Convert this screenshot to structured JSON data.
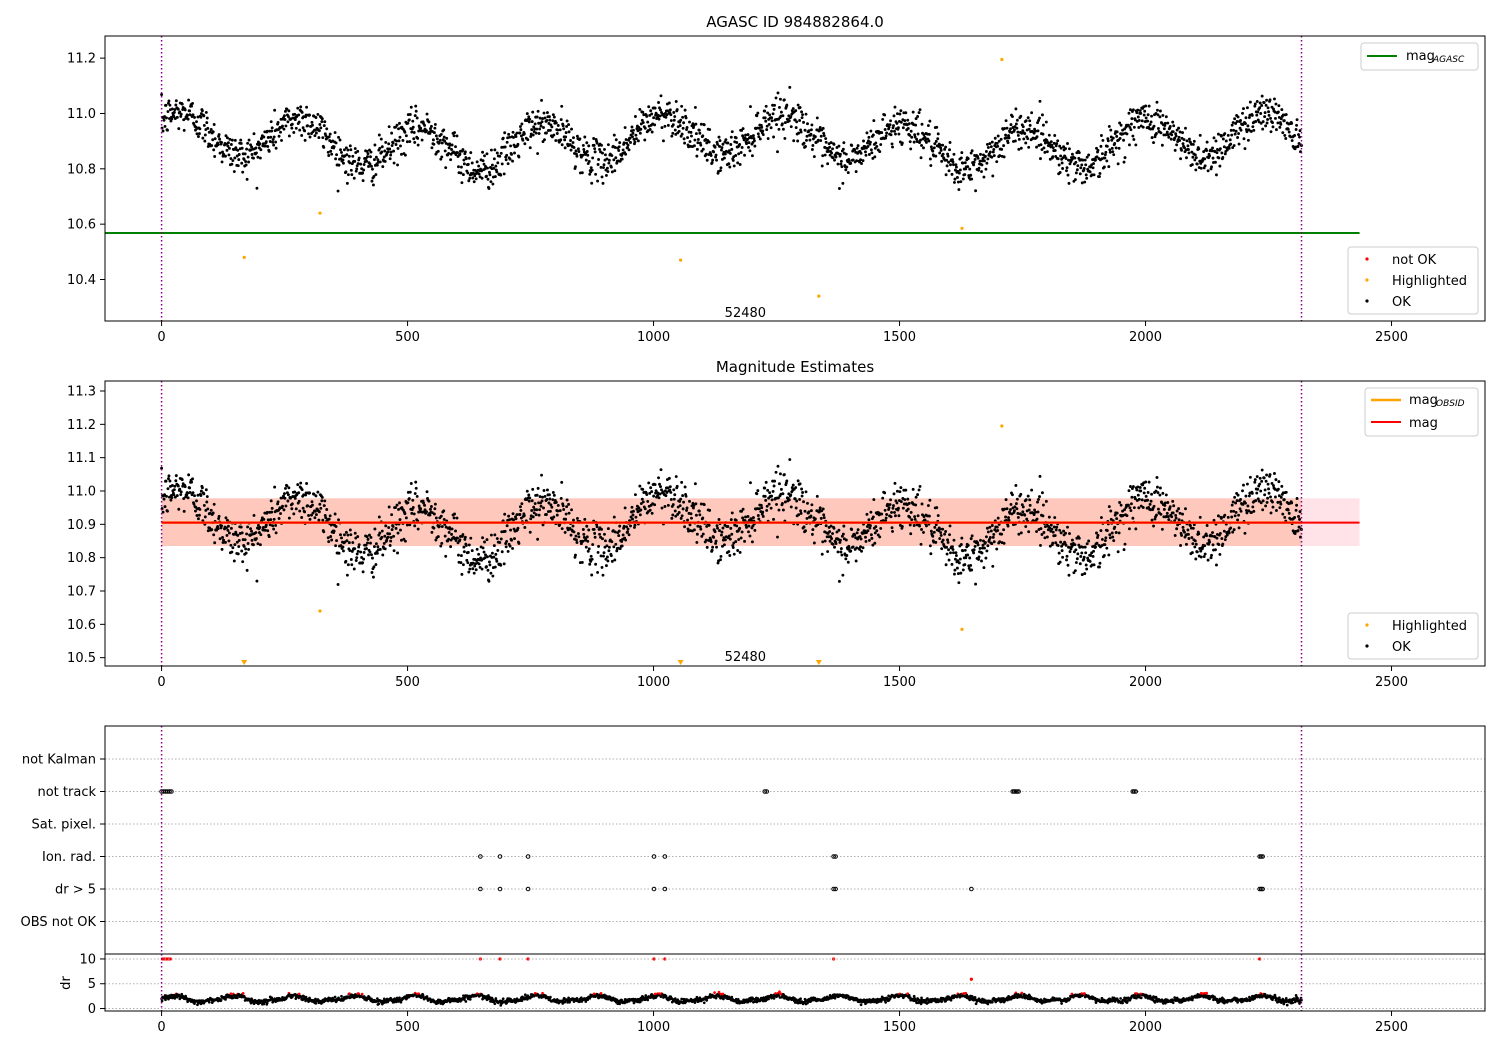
{
  "colors": {
    "ok": "#000000",
    "not_ok": "#ff0000",
    "highlighted": "#ffa500",
    "mag_agasc": "#008000",
    "mag_obsid": "#ffa500",
    "mag": "#ff0000",
    "obsid_boundary": "#800080",
    "band_outer": "#ffc0cb",
    "band_inner": "#ffa07a",
    "flag_grid": "#b0b0b0"
  },
  "chart_data": [
    {
      "type": "scatter",
      "title": "AGASC ID 984882864.0",
      "xlim": [
        -115,
        2690
      ],
      "ylim": [
        10.25,
        11.28
      ],
      "x_ticks": [
        0,
        500,
        1000,
        1500,
        2000,
        2500
      ],
      "y_ticks": [
        10.4,
        10.6,
        10.8,
        11.0,
        11.2
      ],
      "obsid_label": {
        "text": "52480",
        "x": 1150,
        "y": 10.265
      },
      "obsid_boundaries": [
        0,
        2317
      ],
      "ok_points": {
        "count": 2320,
        "x_range": [
          0,
          2317
        ],
        "y_range": [
          10.7,
          11.1
        ]
      },
      "highlighted_points": [
        [
          168,
          10.48
        ],
        [
          322,
          10.64
        ],
        [
          1055,
          10.47
        ],
        [
          1336,
          10.34
        ],
        [
          1627,
          10.585
        ],
        [
          1708,
          11.195
        ]
      ],
      "mag_agasc": {
        "value": 10.568,
        "x_range": [
          0,
          2435
        ]
      },
      "legend_upper": {
        "position": "upper right",
        "entries": [
          {
            "label": "mag",
            "sub": "AGASC"
          }
        ]
      },
      "legend_lower": {
        "position": "lower right",
        "entries": [
          "not OK",
          "Highlighted",
          "OK"
        ]
      }
    },
    {
      "type": "scatter",
      "title": "Magnitude Estimates",
      "xlim": [
        -115,
        2690
      ],
      "ylim": [
        10.475,
        11.33
      ],
      "x_ticks": [
        0,
        500,
        1000,
        1500,
        2000,
        2500
      ],
      "y_ticks": [
        10.5,
        10.6,
        10.7,
        10.8,
        10.9,
        11.0,
        11.1,
        11.2,
        11.3
      ],
      "obsid_label": {
        "text": "52480",
        "x": 1150,
        "y": 10.49
      },
      "obsid_boundaries": [
        0,
        2317
      ],
      "ok_points": {
        "count": 2320,
        "x_range": [
          0,
          2317
        ],
        "y_range": [
          10.7,
          11.1
        ]
      },
      "highlighted_points": [
        [
          322,
          10.64
        ],
        [
          1627,
          10.585
        ],
        [
          1708,
          11.195
        ]
      ],
      "clipped_markers_x": [
        168,
        1055,
        1336
      ],
      "mag": {
        "value": 10.905,
        "band": [
          10.835,
          10.978
        ],
        "x_range": [
          0,
          2435
        ]
      },
      "mag_obsid": {
        "value": 10.905,
        "band": [
          10.835,
          10.978
        ],
        "x_range": [
          0,
          2317
        ]
      },
      "legend_upper": {
        "position": "upper right",
        "entries": [
          {
            "label": "mag",
            "sub": "OBSID"
          },
          {
            "label": "mag",
            "sub": ""
          }
        ]
      },
      "legend_lower": {
        "position": "lower right",
        "entries": [
          "Highlighted",
          "OK"
        ]
      }
    },
    {
      "type": "scatter",
      "xlim": [
        -115,
        2690
      ],
      "x_ticks": [
        0,
        500,
        1000,
        1500,
        2000,
        2500
      ],
      "flag_rows": [
        "not Kalman",
        "not track",
        "Sat. pixel.",
        "Ion. rad.",
        "dr > 5",
        "OBS not OK"
      ],
      "flag_points": {
        "not track": [
          0,
          4,
          8,
          12,
          16,
          20,
          1226,
          1230,
          1730,
          1733,
          1736,
          1739,
          1742,
          1974,
          1977,
          1980
        ],
        "Ion. rad.": [
          648,
          688,
          745,
          1001,
          1023,
          1366,
          1370,
          2232,
          2235,
          2238
        ],
        "dr > 5": [
          648,
          688,
          745,
          1001,
          1023,
          1366,
          1370,
          1646,
          2232,
          2235,
          2238
        ]
      },
      "dr": {
        "ylabel": "dr",
        "ylim": [
          -0.5,
          11
        ],
        "y_ticks": [
          0,
          5,
          10
        ],
        "clip_value": 10,
        "ok_range": [
          0.5,
          3.5
        ],
        "not_ok_points_above_5": [
          [
            648,
            10
          ],
          [
            688,
            10
          ],
          [
            745,
            10
          ],
          [
            1001,
            10
          ],
          [
            1023,
            10
          ],
          [
            1366,
            10
          ],
          [
            1646,
            5.9
          ],
          [
            2232,
            10
          ]
        ]
      },
      "obsid_boundaries": [
        0,
        2317
      ]
    }
  ]
}
